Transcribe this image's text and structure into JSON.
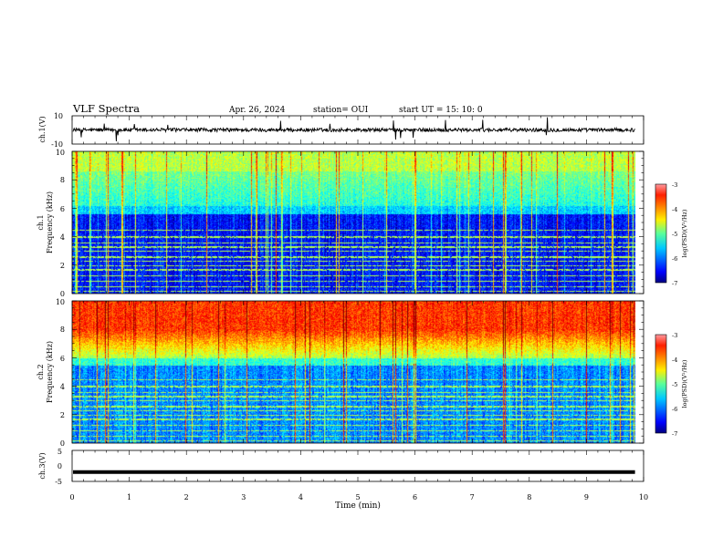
{
  "header": {
    "title": "VLF Spectra",
    "date": "Apr. 26, 2024",
    "station": "station= OUI",
    "start": "start  UT  =   15: 10: 0"
  },
  "chart_data": [
    {
      "type": "line",
      "panel": "ch1-waveform",
      "ylabel": "ch.1(V)",
      "ylim": [
        -10,
        10
      ],
      "ytick_labels": [
        "10",
        "-10"
      ],
      "xlim": [
        0,
        10
      ],
      "series_color": "#000000"
    },
    {
      "type": "heatmap",
      "panel": "ch1-spectrogram",
      "ylabel": "ch.1\nFrequency (kHz)",
      "ylabel_line1": "ch.1",
      "ylabel_line2": "Frequency (kHz)",
      "ylim": [
        0,
        10
      ],
      "ytick_labels": [
        "0",
        "2",
        "4",
        "6",
        "8",
        "10"
      ],
      "xlim": [
        0,
        10
      ],
      "data_end_min": 9.85,
      "colorbar": {
        "label": "log(PSD)(V²/Hz)",
        "range": [
          -7,
          -3
        ],
        "tick_labels": [
          "-3",
          "-4",
          "-5",
          "-6",
          "-7"
        ]
      }
    },
    {
      "type": "heatmap",
      "panel": "ch2-spectrogram",
      "ylabel": "ch.2\nFrequency (kHz)",
      "ylabel_line1": "ch.2",
      "ylabel_line2": "Frequency (kHz)",
      "ylim": [
        0,
        10
      ],
      "ytick_labels": [
        "0",
        "2",
        "4",
        "6",
        "8",
        "10"
      ],
      "xlim": [
        0,
        10
      ],
      "data_end_min": 9.85,
      "colorbar": {
        "label": "log(PSD)(V²/Hz)",
        "range": [
          -7,
          -3
        ],
        "tick_labels": [
          "-3",
          "-4",
          "-5",
          "-6",
          "-7"
        ]
      }
    },
    {
      "type": "line",
      "panel": "ch3-waveform",
      "ylabel": "ch.3(V)",
      "ylim": [
        -5,
        5
      ],
      "ytick_labels": [
        "5",
        "0",
        "-5"
      ],
      "xlim": [
        0,
        10
      ],
      "xlabel": "Time (min)",
      "xtick_labels": [
        "0",
        "1",
        "2",
        "3",
        "4",
        "5",
        "6",
        "7",
        "8",
        "9",
        "10"
      ],
      "constant_value": -2,
      "series_color": "#000000"
    }
  ]
}
